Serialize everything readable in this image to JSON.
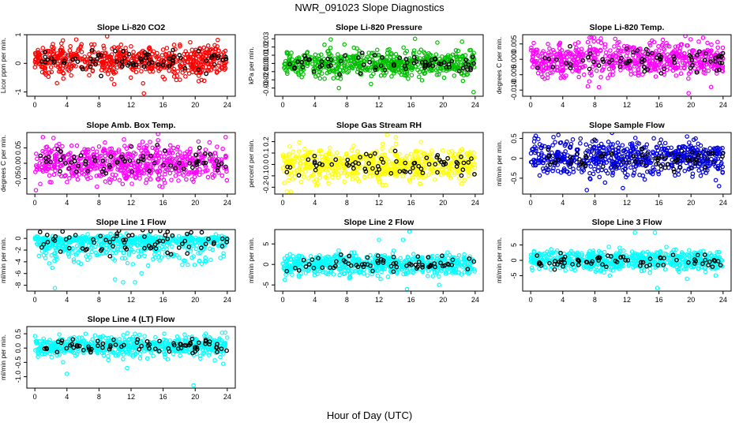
{
  "figure": {
    "title": "NWR_091023  Slope Diagnostics",
    "xlabel": "Hour of Day (UTC)",
    "colors": {
      "flagged": "#000000"
    }
  },
  "chart_data": [
    {
      "id": "co2",
      "type": "scatter",
      "title": "Slope Li-820 CO2",
      "ylabel": "Licor ppm per min.",
      "color": "#ff0000",
      "xlim": [
        -1,
        25
      ],
      "xticks": [
        0,
        4,
        8,
        12,
        16,
        20,
        24
      ],
      "xtick_labels": [
        "0",
        "4",
        "8",
        "12",
        "16",
        "20",
        "24"
      ],
      "ylim": [
        -1.15,
        1.0
      ],
      "yticks": [
        -1,
        0,
        1
      ],
      "ytick_labels": [
        "-1",
        "0",
        "1"
      ],
      "series_description": "~600 points over 0-24 h, mostly between -0.5 and 0.5 ppm/min; black points mark flagged samples",
      "n_points": 600,
      "n_flagged": 75,
      "center": 0.1,
      "spread": 0.28,
      "outliers": [
        [
          13.5,
          -0.7
        ],
        [
          13.6,
          -1.05
        ],
        [
          3.5,
          0.8
        ]
      ]
    },
    {
      "id": "press",
      "type": "scatter",
      "title": "Slope Li-820 Pressure",
      "ylabel": "kPa per min.",
      "color": "#00c000",
      "xlim": [
        -1,
        25
      ],
      "xticks": [
        0,
        4,
        8,
        12,
        16,
        20,
        24
      ],
      "xtick_labels": [
        "0",
        "4",
        "8",
        "12",
        "16",
        "20",
        "24"
      ],
      "ylim": [
        -0.04,
        0.035
      ],
      "yticks": [
        -0.03,
        -0.02,
        -0.01,
        0.0,
        0.01,
        0.02,
        0.03
      ],
      "ytick_labels": [
        "-0.03",
        "-0.02",
        "-0.01",
        "0.00",
        "0.01",
        "0.02",
        "0.03"
      ],
      "series_description": "~600 points mostly between -0.015 and 0.015 kPa/min",
      "n_points": 600,
      "n_flagged": 70,
      "center": 0.0,
      "spread": 0.008,
      "outliers": [
        [
          16.5,
          0.03
        ],
        [
          11,
          -0.025
        ],
        [
          7,
          -0.03
        ],
        [
          23.8,
          -0.035
        ]
      ]
    },
    {
      "id": "temp",
      "type": "scatter",
      "title": "Slope Li-820 Temp.",
      "ylabel": "degrees C per min.",
      "color": "#ff00ff",
      "xlim": [
        -1,
        25
      ],
      "xticks": [
        0,
        4,
        8,
        12,
        16,
        20,
        24
      ],
      "xtick_labels": [
        "0",
        "4",
        "8",
        "12",
        "16",
        "20",
        "24"
      ],
      "ylim": [
        -0.012,
        0.008
      ],
      "yticks": [
        -0.01,
        -0.005,
        0.0,
        0.005
      ],
      "ytick_labels": [
        "-0.010",
        "-0.005",
        "0.000",
        "0.005"
      ],
      "series_description": "~600 points mostly between -0.005 and 0.005 C/min",
      "n_points": 600,
      "n_flagged": 70,
      "center": 0.0,
      "spread": 0.0028,
      "outliers": [
        [
          19.7,
          -0.011
        ],
        [
          22.5,
          -0.009
        ],
        [
          21.5,
          0.007
        ]
      ]
    },
    {
      "id": "boxtemp",
      "type": "scatter",
      "title": "Slope Amb. Box Temp.",
      "ylabel": "degrees C per min.",
      "color": "#ff00ff",
      "xlim": [
        -1,
        25
      ],
      "xticks": [
        0,
        4,
        8,
        12,
        16,
        20,
        24
      ],
      "xtick_labels": [
        "0",
        "4",
        "8",
        "12",
        "16",
        "20",
        "24"
      ],
      "ylim": [
        -0.1,
        0.1
      ],
      "yticks": [
        -0.05,
        0.0,
        0.05
      ],
      "ytick_labels": [
        "-0.05",
        "0.00",
        "0.05"
      ],
      "series_description": "~600 points mostly between -0.06 and 0.06 C/min",
      "n_points": 600,
      "n_flagged": 70,
      "center": 0.0,
      "spread": 0.03,
      "outliers": [
        [
          1,
          0.085
        ],
        [
          23.8,
          0.085
        ]
      ]
    },
    {
      "id": "rh",
      "type": "scatter",
      "title": "Slope Gas Stream RH",
      "ylabel": "percent per min.",
      "color": "#ffff00",
      "xlim": [
        -1,
        25
      ],
      "xticks": [
        0,
        4,
        8,
        12,
        16,
        20,
        24
      ],
      "xtick_labels": [
        "0",
        "4",
        "8",
        "12",
        "16",
        "20",
        "24"
      ],
      "ylim": [
        -0.26,
        0.28
      ],
      "yticks": [
        -0.2,
        -0.1,
        0.0,
        0.1,
        0.2
      ],
      "ytick_labels": [
        "-0.2",
        "-0.1",
        "0.0",
        "0.1",
        "0.2"
      ],
      "series_description": "~600 points mostly between -0.15 and 0.15 %/min",
      "n_points": 600,
      "n_flagged": 70,
      "center": 0.0,
      "spread": 0.07,
      "outliers": [
        [
          13,
          0.26
        ],
        [
          0.5,
          -0.24
        ],
        [
          1,
          -0.24
        ]
      ]
    },
    {
      "id": "sflow",
      "type": "scatter",
      "title": "Slope Sample Flow",
      "ylabel": "ml/min per min.",
      "color": "#0000e0",
      "xlim": [
        -1,
        25
      ],
      "xticks": [
        0,
        4,
        8,
        12,
        16,
        20,
        24
      ],
      "xtick_labels": [
        "0",
        "4",
        "8",
        "12",
        "16",
        "20",
        "24"
      ],
      "ylim": [
        -0.9,
        0.65
      ],
      "yticks": [
        -0.5,
        0.0,
        0.5
      ],
      "ytick_labels": [
        "-0.5",
        "0",
        "0.5"
      ],
      "series_description": "~600 points mostly between -0.5 and 0.5 ml/min per min",
      "n_points": 600,
      "n_flagged": 70,
      "center": 0.0,
      "spread": 0.22,
      "outliers": [
        [
          7,
          -0.8
        ],
        [
          11.5,
          -0.75
        ],
        [
          23.5,
          -0.7
        ],
        [
          19.5,
          0.55
        ]
      ]
    },
    {
      "id": "l1",
      "type": "scatter",
      "title": "Slope Line 1 Flow",
      "ylabel": "ml/min per min.",
      "color": "#00ffff",
      "xlim": [
        -1,
        25
      ],
      "xticks": [
        0,
        4,
        8,
        12,
        16,
        20,
        24
      ],
      "xtick_labels": [
        "0",
        "4",
        "8",
        "12",
        "16",
        "20",
        "24"
      ],
      "ylim": [
        -9,
        1.5
      ],
      "yticks": [
        -8,
        -6,
        -4,
        -2,
        0
      ],
      "ytick_labels": [
        "-8",
        "-6",
        "-4",
        "-2",
        "0"
      ],
      "series_description": "~600 points concentrated near 0 with a tail down to about -8",
      "n_points": 600,
      "n_flagged": 75,
      "center": -0.5,
      "spread": 1.6,
      "skew": "negative",
      "outliers": [
        [
          2.5,
          -8.5
        ],
        [
          10,
          -7
        ],
        [
          11,
          -7.5
        ],
        [
          12.5,
          -7.5
        ]
      ]
    },
    {
      "id": "l2",
      "type": "scatter",
      "title": "Slope Line 2 Flow",
      "ylabel": "ml/min per min.",
      "color": "#00ffff",
      "xlim": [
        -1,
        25
      ],
      "xticks": [
        0,
        4,
        8,
        12,
        16,
        20,
        24
      ],
      "xtick_labels": [
        "0",
        "4",
        "8",
        "12",
        "16",
        "20",
        "24"
      ],
      "ylim": [
        -6.5,
        8.5
      ],
      "yticks": [
        -5,
        0,
        5
      ],
      "ytick_labels": [
        "-5",
        "0",
        "5"
      ],
      "series_description": "~600 points mostly between -3 and 3 with spikes near hours 12-16",
      "n_points": 600,
      "n_flagged": 70,
      "center": 0.0,
      "spread": 1.3,
      "outliers": [
        [
          15.8,
          8
        ],
        [
          15,
          6
        ],
        [
          15.5,
          -6
        ],
        [
          12,
          6
        ],
        [
          19.5,
          -5
        ]
      ]
    },
    {
      "id": "l3",
      "type": "scatter",
      "title": "Slope Line 3 Flow",
      "ylabel": "ml/min per min.",
      "color": "#00ffff",
      "xlim": [
        -1,
        25
      ],
      "xticks": [
        0,
        4,
        8,
        12,
        16,
        20,
        24
      ],
      "xtick_labels": [
        "0",
        "4",
        "8",
        "12",
        "16",
        "20",
        "24"
      ],
      "ylim": [
        -10,
        10
      ],
      "yticks": [
        -5,
        0,
        5
      ],
      "ytick_labels": [
        "-5",
        "0",
        "5"
      ],
      "series_description": "~600 points mostly between -4 and 4 with spikes near hours 12-16",
      "n_points": 600,
      "n_flagged": 70,
      "center": 0.0,
      "spread": 1.6,
      "outliers": [
        [
          15.5,
          9
        ],
        [
          13,
          9
        ],
        [
          15.8,
          -9
        ],
        [
          19.5,
          -6
        ]
      ]
    },
    {
      "id": "l4",
      "type": "scatter",
      "title": "Slope Line 4 (LT) Flow",
      "ylabel": "ml/min per min.",
      "color": "#00ffff",
      "xlim": [
        -1,
        25
      ],
      "xticks": [
        0,
        4,
        8,
        12,
        16,
        20,
        24
      ],
      "xtick_labels": [
        "0",
        "4",
        "8",
        "12",
        "16",
        "20",
        "24"
      ],
      "ylim": [
        -1.4,
        0.75
      ],
      "yticks": [
        -1,
        -0.5,
        0,
        0.5
      ],
      "ytick_labels": [
        "-1.0",
        "-0.5",
        "0.0",
        "0.5"
      ],
      "series_description": "~600 points mostly between -0.4 and 0.4",
      "n_points": 600,
      "n_flagged": 75,
      "center": 0.05,
      "spread": 0.17,
      "outliers": [
        [
          19.8,
          -1.3
        ],
        [
          4,
          -0.9
        ],
        [
          11.5,
          -0.7
        ],
        [
          23.5,
          -0.55
        ]
      ]
    }
  ]
}
